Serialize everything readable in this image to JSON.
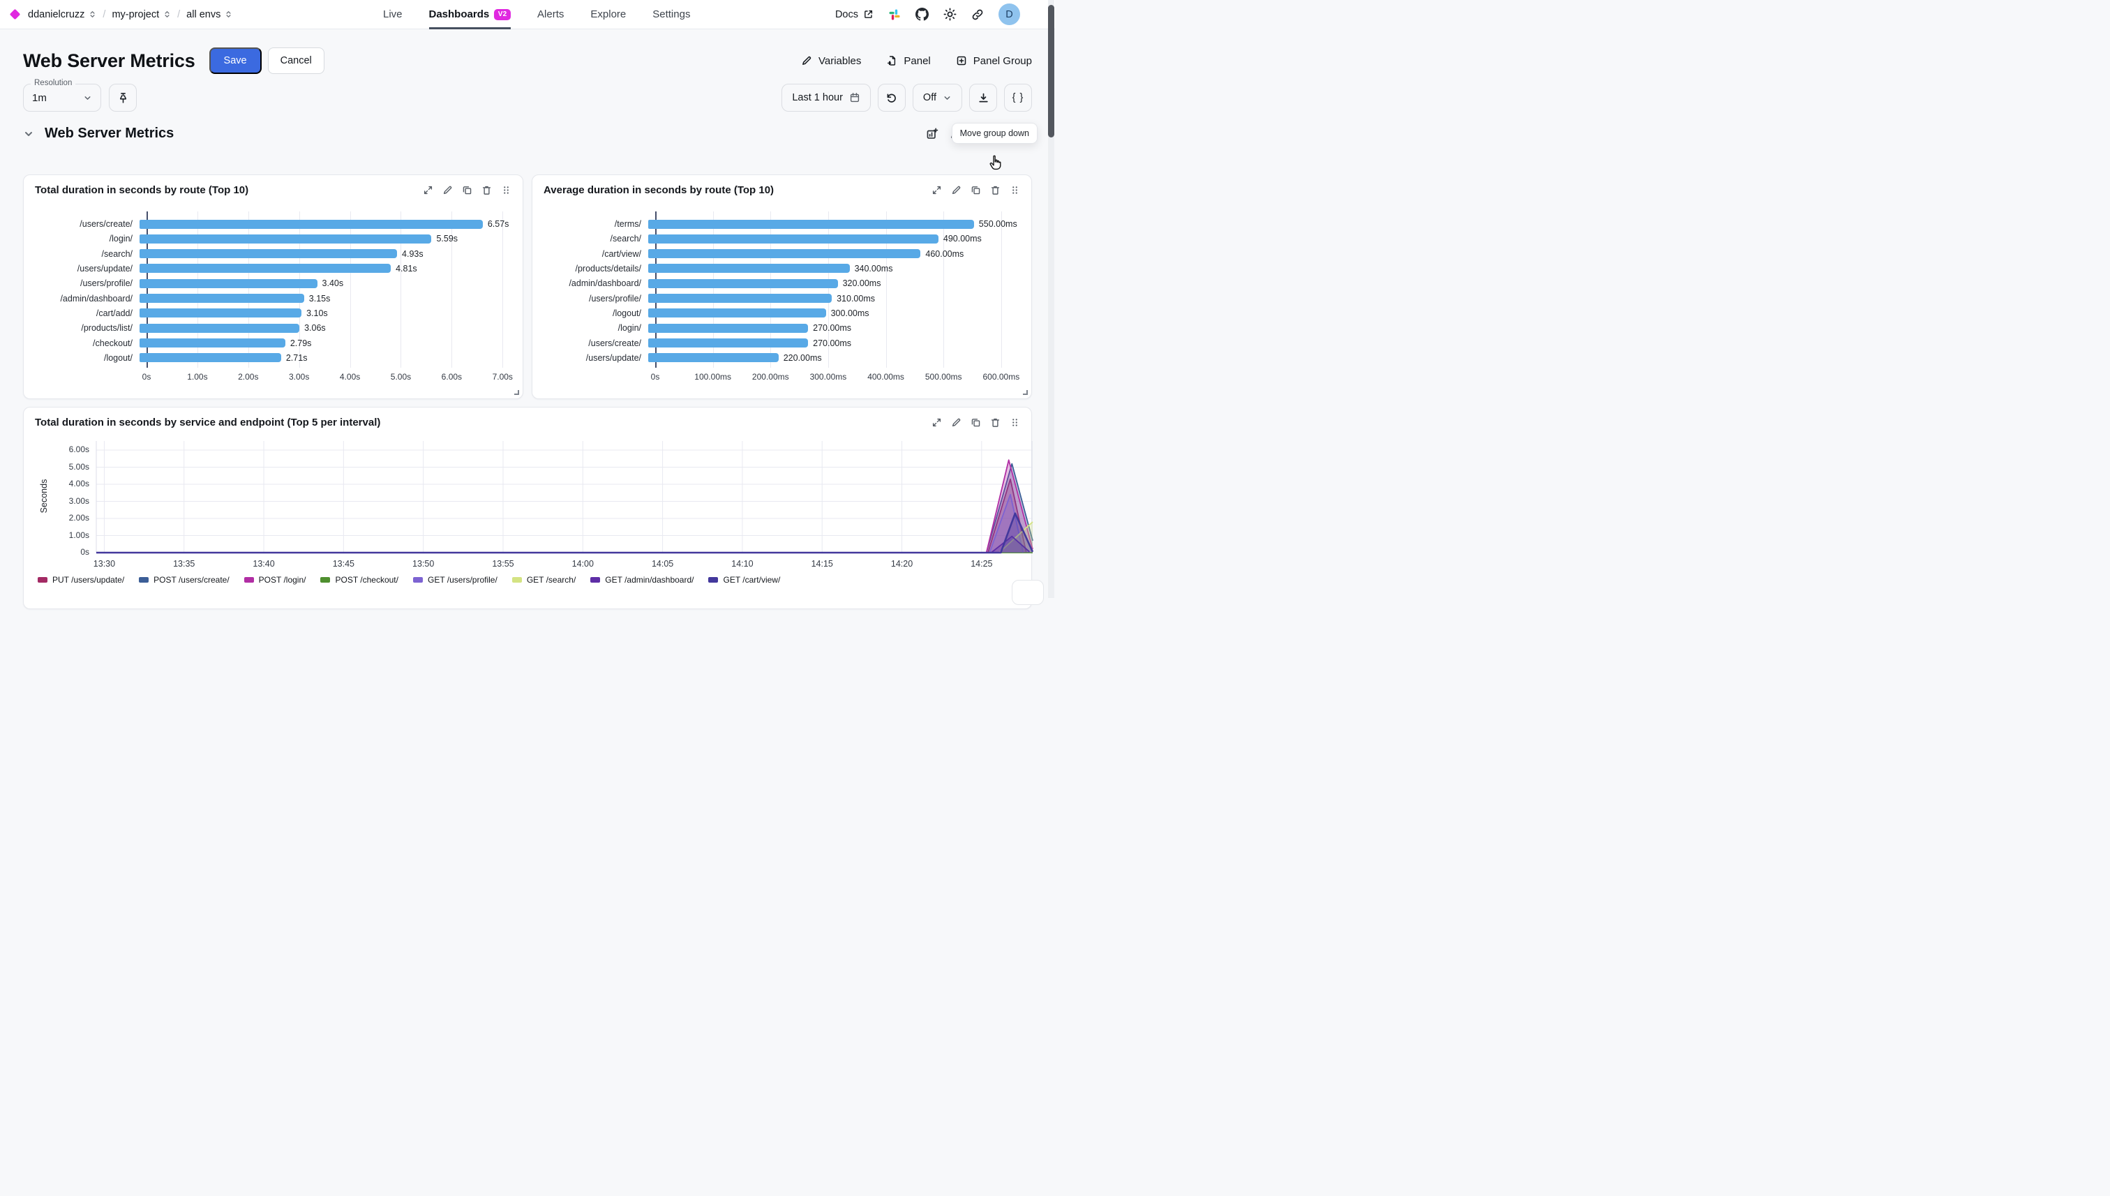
{
  "topbar": {
    "org": "ddanielcruzz",
    "separator": "/",
    "project": "my-project",
    "env": "all envs",
    "tabs": [
      {
        "label": "Live",
        "active": false
      },
      {
        "label": "Dashboards",
        "badge": "V2",
        "active": true
      },
      {
        "label": "Alerts",
        "active": false
      },
      {
        "label": "Explore",
        "active": false
      },
      {
        "label": "Settings",
        "active": false
      }
    ],
    "docs_label": "Docs",
    "avatar_initial": "D"
  },
  "header": {
    "title": "Web Server Metrics",
    "save_label": "Save",
    "cancel_label": "Cancel",
    "variables_label": "Variables",
    "panel_label": "Panel",
    "panel_group_label": "Panel Group"
  },
  "controls": {
    "resolution_label": "Resolution",
    "resolution_value": "1m",
    "time_range": "Last 1 hour",
    "refresh_value": "Off",
    "code_button": "{ }",
    "tooltip": "Move group down"
  },
  "group": {
    "title": "Web Server Metrics"
  },
  "icons": {
    "topbar": [
      "external-link",
      "slack",
      "github",
      "sun",
      "link"
    ],
    "controls": [
      "chevron-down",
      "pin",
      "calendar",
      "refresh",
      "download",
      "braces"
    ],
    "group_header": [
      "chevron-down",
      "add-chart",
      "edit",
      "delete",
      "move-down",
      "move-up",
      "hand-cursor"
    ],
    "panel_header": [
      "expand",
      "edit",
      "duplicate",
      "delete",
      "drag-handle"
    ]
  },
  "colors": {
    "accent_blue": "#3b6ae0",
    "brand_magenta": "#e028e0",
    "bar_blue": "#58a9e6",
    "tab_underline": "#46505f"
  },
  "chart_data": [
    {
      "type": "bar",
      "orientation": "horizontal",
      "title": "Total duration in seconds by route (Top 10)",
      "categories": [
        "/users/create/",
        "/login/",
        "/search/",
        "/users/update/",
        "/users/profile/",
        "/admin/dashboard/",
        "/cart/add/",
        "/products/list/",
        "/checkout/",
        "/logout/"
      ],
      "values": [
        6.57,
        5.59,
        4.93,
        4.81,
        3.4,
        3.15,
        3.1,
        3.06,
        2.79,
        2.71
      ],
      "value_labels": [
        "6.57s",
        "5.59s",
        "4.93s",
        "4.81s",
        "3.40s",
        "3.15s",
        "3.10s",
        "3.06s",
        "2.79s",
        "2.71s"
      ],
      "x_ticks": [
        {
          "v": 0,
          "label": "0s"
        },
        {
          "v": 1,
          "label": "1.00s"
        },
        {
          "v": 2,
          "label": "2.00s"
        },
        {
          "v": 3,
          "label": "3.00s"
        },
        {
          "v": 4,
          "label": "4.00s"
        },
        {
          "v": 5,
          "label": "5.00s"
        },
        {
          "v": 6,
          "label": "6.00s"
        },
        {
          "v": 7,
          "label": "7.00s"
        }
      ],
      "x_plot_max": 7.12,
      "bar_color": "#58a9e6",
      "grid": true
    },
    {
      "type": "bar",
      "orientation": "horizontal",
      "title": "Average duration in seconds by route (Top 10)",
      "categories": [
        "/terms/",
        "/search/",
        "/cart/view/",
        "/products/details/",
        "/admin/dashboard/",
        "/users/profile/",
        "/logout/",
        "/login/",
        "/users/create/",
        "/users/update/"
      ],
      "values": [
        550,
        490,
        460,
        340,
        320,
        310,
        300,
        270,
        270,
        220
      ],
      "value_labels": [
        "550.00ms",
        "490.00ms",
        "460.00ms",
        "340.00ms",
        "320.00ms",
        "310.00ms",
        "300.00ms",
        "270.00ms",
        "270.00ms",
        "220.00ms"
      ],
      "x_ticks": [
        {
          "v": 0,
          "label": "0s"
        },
        {
          "v": 100,
          "label": "100.00ms"
        },
        {
          "v": 200,
          "label": "200.00ms"
        },
        {
          "v": 300,
          "label": "300.00ms"
        },
        {
          "v": 400,
          "label": "400.00ms"
        },
        {
          "v": 500,
          "label": "500.00ms"
        },
        {
          "v": 600,
          "label": "600.00ms"
        }
      ],
      "x_plot_max": 628,
      "bar_color": "#58a9e6",
      "grid": true
    },
    {
      "type": "area",
      "title": "Total duration in seconds by service and endpoint (Top 5 per interval)",
      "ylabel": "Seconds",
      "ylim": [
        0,
        6.45
      ],
      "y_ticks": [
        {
          "v": 0,
          "label": "0s"
        },
        {
          "v": 1,
          "label": "1.00s"
        },
        {
          "v": 2,
          "label": "2.00s"
        },
        {
          "v": 3,
          "label": "3.00s"
        },
        {
          "v": 4,
          "label": "4.00s"
        },
        {
          "v": 5,
          "label": "5.00s"
        },
        {
          "v": 6,
          "label": "6.00s"
        }
      ],
      "x_domain_minutes": [
        -0.5,
        58.2
      ],
      "x_ticks": [
        {
          "m": 0,
          "label": "13:30"
        },
        {
          "m": 5,
          "label": "13:35"
        },
        {
          "m": 10,
          "label": "13:40"
        },
        {
          "m": 15,
          "label": "13:45"
        },
        {
          "m": 20,
          "label": "13:50"
        },
        {
          "m": 25,
          "label": "13:55"
        },
        {
          "m": 30,
          "label": "14:00"
        },
        {
          "m": 35,
          "label": "14:05"
        },
        {
          "m": 40,
          "label": "14:10"
        },
        {
          "m": 45,
          "label": "14:15"
        },
        {
          "m": 50,
          "label": "14:20"
        },
        {
          "m": 55,
          "label": "14:25"
        }
      ],
      "legend_position": "bottom",
      "grid": true,
      "series": [
        {
          "name": "PUT /users/update/",
          "color": "#a32a64",
          "points": [
            [
              -0.5,
              0
            ],
            [
              55.4,
              0
            ],
            [
              56.8,
              4.3
            ],
            [
              57.8,
              0
            ]
          ]
        },
        {
          "name": "POST /users/create/",
          "color": "#3c5e97",
          "points": [
            [
              -0.5,
              0
            ],
            [
              55.3,
              0
            ],
            [
              56.9,
              5.2
            ],
            [
              58.2,
              0.7
            ]
          ]
        },
        {
          "name": "POST /login/",
          "color": "#b12ea4",
          "points": [
            [
              -0.5,
              0
            ],
            [
              55.3,
              0
            ],
            [
              56.7,
              5.42
            ],
            [
              58.2,
              0.2
            ]
          ]
        },
        {
          "name": "POST /checkout/",
          "color": "#4f8f2f",
          "points": [
            [
              -0.5,
              0
            ],
            [
              58.2,
              0
            ]
          ]
        },
        {
          "name": "GET /users/profile/",
          "color": "#7d63d2",
          "points": [
            [
              -0.5,
              0
            ],
            [
              55.5,
              0
            ],
            [
              56.8,
              3.4
            ],
            [
              57.6,
              0
            ]
          ]
        },
        {
          "name": "GET /search/",
          "color": "#d4e383",
          "points": [
            [
              -0.5,
              0
            ],
            [
              56.1,
              0
            ],
            [
              58.2,
              1.8
            ]
          ]
        },
        {
          "name": "GET /admin/dashboard/",
          "color": "#5e2ea6",
          "points": [
            [
              -0.5,
              0
            ],
            [
              55.6,
              0
            ],
            [
              56.9,
              0.95
            ],
            [
              58.0,
              0.05
            ]
          ]
        },
        {
          "name": "GET /cart/view/",
          "color": "#43389c",
          "width": 2.6,
          "points": [
            [
              -0.5,
              0
            ],
            [
              56.2,
              0
            ],
            [
              57.1,
              2.3
            ],
            [
              58.2,
              0.05
            ]
          ]
        }
      ]
    }
  ]
}
